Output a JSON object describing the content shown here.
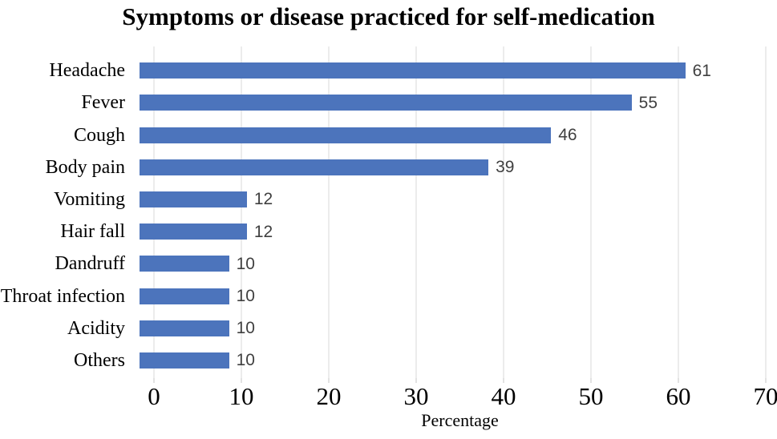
{
  "chart_data": {
    "type": "bar",
    "orientation": "horizontal",
    "title": "Symptoms or disease practiced for self-medication",
    "categories": [
      "Headache",
      "Fever",
      "Cough",
      "Body pain",
      "Vomiting",
      "Hair fall",
      "Dandruff",
      "Throat infection",
      "Acidity",
      "Others"
    ],
    "values": [
      61,
      55,
      46,
      39,
      12,
      12,
      10,
      10,
      10,
      10
    ],
    "data_labels": [
      "61",
      "55",
      "46",
      "39",
      "12",
      "12",
      "10",
      "10",
      "10",
      "10"
    ],
    "xlabel": "Percentage",
    "ylabel": "",
    "xlim": [
      0,
      70
    ],
    "xticks": [
      0,
      10,
      20,
      30,
      40,
      50,
      60,
      70
    ],
    "grid": true,
    "legend": false
  },
  "colors": {
    "bar": "#4C74BC",
    "gridline": "#D9D9D9",
    "axis_tick": "#C6C6C6",
    "data_label": "#404040",
    "text": "#000000",
    "background": "#FFFFFF"
  }
}
